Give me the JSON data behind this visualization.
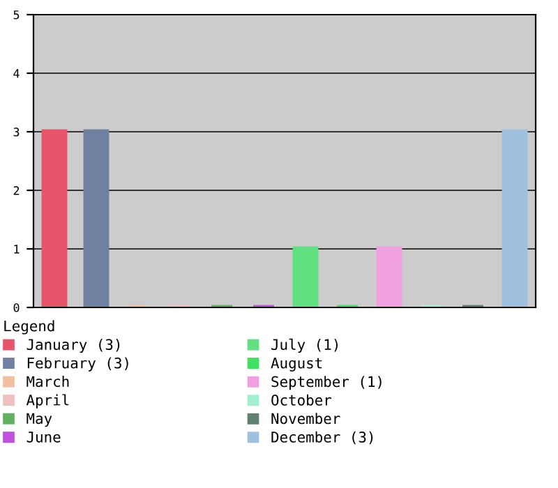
{
  "chart_data": {
    "type": "bar",
    "categories": [
      null,
      null,
      null,
      null,
      null,
      null,
      null,
      null,
      null,
      null,
      null,
      null
    ],
    "series": [
      {
        "name": "January (3)",
        "color": "#e8546a",
        "values": [
          3,
          null,
          null,
          null,
          null,
          null,
          null,
          null,
          null,
          null,
          null,
          null
        ]
      },
      {
        "name": "February (3)",
        "color": "#7080a0",
        "values": [
          null,
          3,
          null,
          null,
          null,
          null,
          null,
          null,
          null,
          null,
          null,
          null
        ]
      },
      {
        "name": "March",
        "color": "#f0c0a0",
        "values": [
          null,
          null,
          0,
          null,
          null,
          null,
          null,
          null,
          null,
          null,
          null,
          null
        ]
      },
      {
        "name": "April",
        "color": "#f0c0c0",
        "values": [
          null,
          null,
          null,
          0,
          null,
          null,
          null,
          null,
          null,
          null,
          null,
          null
        ]
      },
      {
        "name": "May",
        "color": "#60b060",
        "values": [
          null,
          null,
          null,
          null,
          0,
          null,
          null,
          null,
          null,
          null,
          null,
          null
        ]
      },
      {
        "name": "June",
        "color": "#c050e0",
        "values": [
          null,
          null,
          null,
          null,
          null,
          0,
          null,
          null,
          null,
          null,
          null,
          null
        ]
      },
      {
        "name": "July (1)",
        "color": "#60e080",
        "values": [
          null,
          null,
          null,
          null,
          null,
          null,
          1,
          null,
          null,
          null,
          null,
          null
        ]
      },
      {
        "name": "August",
        "color": "#40e060",
        "values": [
          null,
          null,
          null,
          null,
          null,
          null,
          null,
          0,
          null,
          null,
          null,
          null
        ]
      },
      {
        "name": "September (1)",
        "color": "#f0a0e0",
        "values": [
          null,
          null,
          null,
          null,
          null,
          null,
          null,
          null,
          1,
          null,
          null,
          null
        ]
      },
      {
        "name": "October",
        "color": "#a0f0d0",
        "values": [
          null,
          null,
          null,
          null,
          null,
          null,
          null,
          null,
          null,
          0,
          null,
          null
        ]
      },
      {
        "name": "November",
        "color": "#608070",
        "values": [
          null,
          null,
          null,
          null,
          null,
          null,
          null,
          null,
          null,
          null,
          0,
          null
        ]
      },
      {
        "name": "December (3)",
        "color": "#a0c0e0",
        "values": [
          null,
          null,
          null,
          null,
          null,
          null,
          null,
          null,
          null,
          null,
          null,
          3
        ]
      }
    ],
    "ylim": [
      0,
      5
    ],
    "yticks": [
      0,
      1,
      2,
      3,
      4,
      5
    ],
    "grid": "y",
    "legend": "bottom",
    "legend_title": "Legend"
  }
}
